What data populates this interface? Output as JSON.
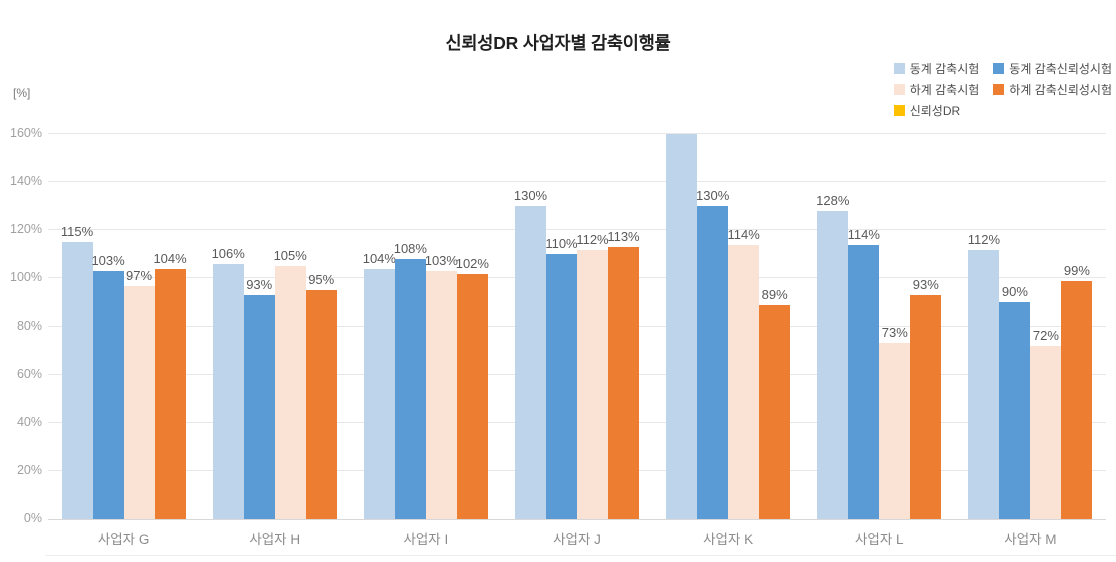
{
  "title": "신뢰성DR 사업자별 감축이행률",
  "y_axis": {
    "unit_label": "[%]",
    "ticks": [
      "0%",
      "20%",
      "40%",
      "60%",
      "80%",
      "100%",
      "120%",
      "140%",
      "160%"
    ]
  },
  "legend": [
    {
      "label": "동계 감축시험",
      "color": "#BDD4EB"
    },
    {
      "label": "동계 감축신뢰성시험",
      "color": "#5B9BD5"
    },
    {
      "label": "하계 감축시험",
      "color": "#FAE3D4"
    },
    {
      "label": "하계 감축신뢰성시험",
      "color": "#ED7D31"
    },
    {
      "label": "신뢰성DR",
      "color": "#FFC000"
    }
  ],
  "chart_data": {
    "type": "bar",
    "title": "신뢰성DR 사업자별 감축이행률",
    "ylabel": "[%]",
    "ylim": [
      0,
      160
    ],
    "y_tick_step": 20,
    "grid": true,
    "legend_position": "top-right",
    "categories": [
      "사업자 G",
      "사업자 H",
      "사업자 I",
      "사업자 J",
      "사업자 K",
      "사업자 L",
      "사업자 M"
    ],
    "series": [
      {
        "name": "동계 감축시험",
        "color": "#BDD4EB",
        "values": [
          115,
          106,
          104,
          130,
          160,
          128,
          112
        ],
        "labels": [
          "115%",
          "106%",
          "104%",
          "130%",
          "",
          "128%",
          "112%"
        ]
      },
      {
        "name": "동계 감축신뢰성시험",
        "color": "#5B9BD5",
        "values": [
          103,
          93,
          108,
          110,
          130,
          114,
          90
        ],
        "labels": [
          "103%",
          "93%",
          "108%",
          "110%",
          "130%",
          "114%",
          "90%"
        ]
      },
      {
        "name": "하계 감축시험",
        "color": "#FAE3D4",
        "values": [
          97,
          105,
          103,
          112,
          114,
          73,
          72
        ],
        "labels": [
          "97%",
          "105%",
          "103%",
          "112%",
          "114%",
          "73%",
          "72%"
        ]
      },
      {
        "name": "하계 감축신뢰성시험",
        "color": "#ED7D31",
        "values": [
          104,
          95,
          102,
          113,
          89,
          93,
          99
        ],
        "labels": [
          "104%",
          "95%",
          "102%",
          "113%",
          "89%",
          "93%",
          "99%"
        ]
      },
      {
        "name": "신뢰성DR",
        "color": "#FFC000",
        "values": [],
        "labels": []
      }
    ],
    "notes": "사업자 K 동계 감축시험 bar is clipped at the 160% axis maximum and shows no data label."
  }
}
